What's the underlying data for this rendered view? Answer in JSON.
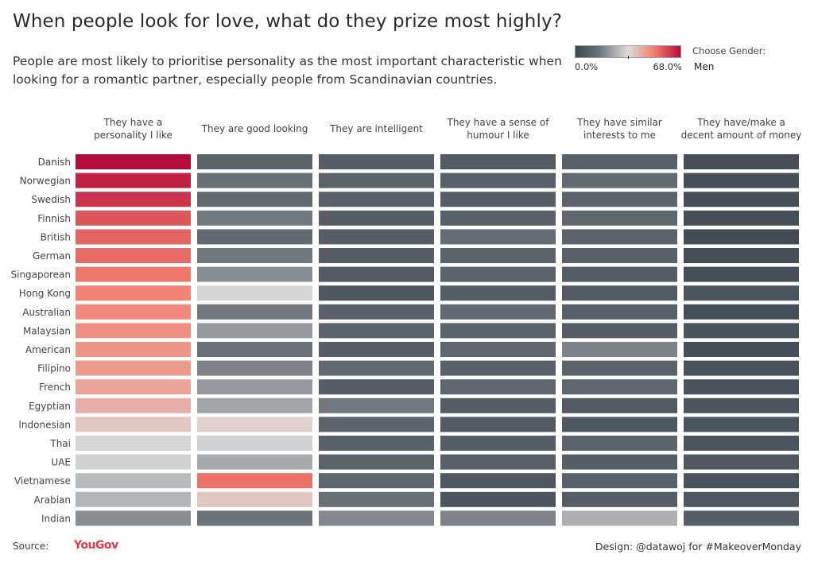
{
  "title": "When people look for love, what do they prize most highly?",
  "subtitle": "People are most likely to prioritise personality as the most important characteristic when looking for a romantic partner, especially people from Scandinavian countries.",
  "legend": {
    "min_label": "0.0%",
    "max_label": "68.0%",
    "min": 0,
    "max": 68
  },
  "filter": {
    "label": "Choose Gender:",
    "value": "Men"
  },
  "footer": {
    "source_label": "Source:",
    "source_name": "YouGov",
    "design": "Design: @datawoj for #MakeoverMonday"
  },
  "chart_data": {
    "type": "heatmap",
    "columns": [
      "They have a personality I like",
      "They are good looking",
      "They are intelligent",
      "They have a sense of humour I like",
      "They have similar interests to me",
      "They have/make a decent amount of money"
    ],
    "rows": [
      "Danish",
      "Norwegian",
      "Swedish",
      "Finnish",
      "British",
      "German",
      "Singaporean",
      "Hong Kong",
      "Australian",
      "Malaysian",
      "American",
      "Filipino",
      "French",
      "Egyptian",
      "Indonesian",
      "Thai",
      "UAE",
      "Vietnamese",
      "Arabian",
      "Indian"
    ],
    "values": [
      [
        68,
        10,
        8,
        7,
        9,
        3
      ],
      [
        65,
        14,
        10,
        9,
        12,
        3
      ],
      [
        62,
        12,
        9,
        8,
        10,
        3
      ],
      [
        57,
        16,
        8,
        9,
        11,
        3
      ],
      [
        55,
        12,
        8,
        13,
        10,
        2
      ],
      [
        54,
        16,
        8,
        10,
        9,
        3
      ],
      [
        52,
        20,
        7,
        10,
        8,
        3
      ],
      [
        50,
        33,
        6,
        8,
        7,
        5
      ],
      [
        49,
        16,
        9,
        12,
        9,
        3
      ],
      [
        48,
        22,
        10,
        10,
        8,
        4
      ],
      [
        47,
        15,
        8,
        11,
        18,
        3
      ],
      [
        46,
        18,
        12,
        9,
        10,
        4
      ],
      [
        44,
        22,
        8,
        11,
        11,
        4
      ],
      [
        42,
        24,
        16,
        8,
        7,
        5
      ],
      [
        38,
        36,
        10,
        7,
        6,
        5
      ],
      [
        33,
        32,
        9,
        8,
        10,
        5
      ],
      [
        32,
        25,
        10,
        9,
        8,
        6
      ],
      [
        28,
        53,
        11,
        6,
        9,
        4
      ],
      [
        27,
        38,
        14,
        5,
        8,
        6
      ],
      [
        20,
        15,
        19,
        18,
        26,
        8
      ]
    ]
  }
}
